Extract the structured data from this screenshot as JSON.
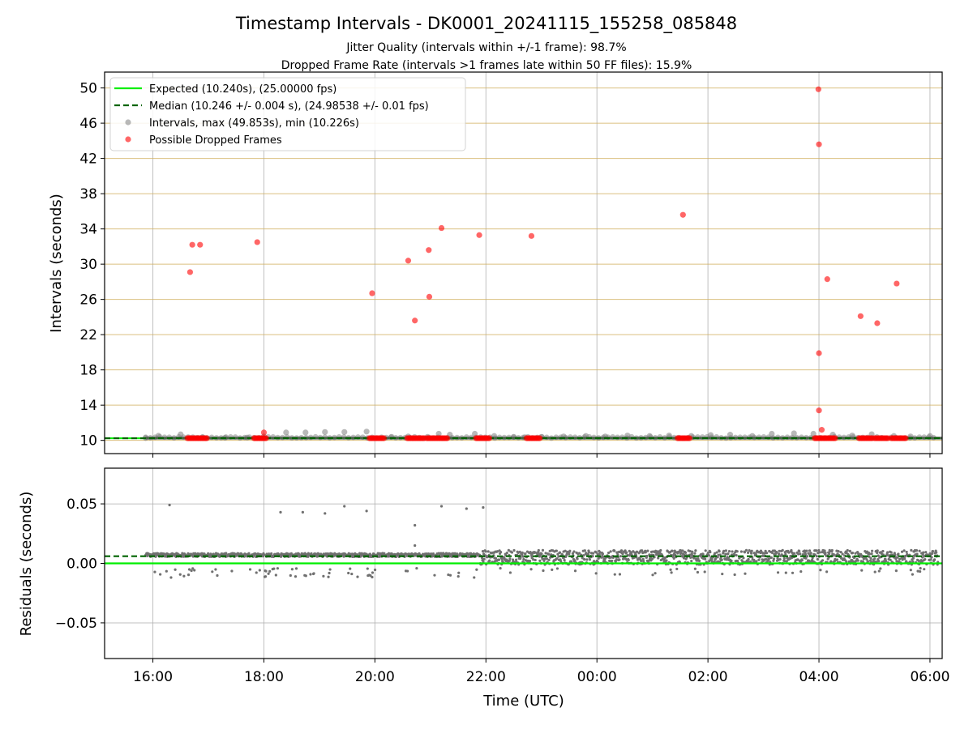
{
  "chart_data": [
    {
      "type": "scatter",
      "title": "Timestamp Intervals - DK0001_20241115_155258_085848",
      "subtitle_lines": [
        "Jitter Quality (intervals within +/-1 frame): 98.7%",
        "Dropped Frame Rate (intervals >1 frames late within 50 FF files): 15.9%"
      ],
      "ylabel": "Intervals (seconds)",
      "x_unit": "hours since 00:00 UTC on the start date",
      "xlim": [
        15.13,
        30.22
      ],
      "ylim": [
        8.5,
        51.8
      ],
      "yticks": [
        10,
        14,
        18,
        22,
        26,
        30,
        34,
        38,
        42,
        46,
        50
      ],
      "grid": true,
      "legend_position": "top-left",
      "legend": [
        "Expected (10.240s), (25.00000 fps)",
        "Median (10.246 +/- 0.004 s), (24.98538 +/- 0.01 fps)",
        "Intervals, max (49.853s), min (10.226s)",
        "Possible Dropped Frames"
      ],
      "series": [
        {
          "name": "Expected (10.240s), (25.00000 fps)",
          "kind": "hline",
          "y": 10.24,
          "color": "#00ee00"
        },
        {
          "name": "Median (10.246 +/- 0.004 s), (24.98538 +/- 0.01 fps)",
          "kind": "hline-dashed",
          "y": 10.246,
          "color": "#006400"
        },
        {
          "name": "Intervals, max (49.853s), min (10.226s)",
          "kind": "points",
          "color": "#808080",
          "x": [
            15.87,
            16.1,
            16.5,
            16.9,
            17.3,
            17.7,
            18.0,
            18.4,
            18.75,
            19.1,
            19.45,
            19.85,
            20.3,
            20.6,
            20.95,
            21.15,
            21.35,
            21.8,
            22.15,
            22.5,
            22.7,
            23.0,
            23.4,
            23.8,
            24.15,
            24.55,
            24.95,
            25.3,
            25.7,
            26.05,
            26.4,
            26.8,
            27.15,
            27.55,
            27.9,
            28.25,
            28.6,
            28.95,
            29.35,
            29.65,
            30.0
          ],
          "y": [
            10.27,
            10.52,
            10.68,
            10.35,
            10.3,
            10.32,
            10.45,
            10.9,
            10.9,
            10.95,
            10.95,
            11.0,
            10.4,
            10.45,
            10.4,
            10.75,
            10.65,
            10.75,
            10.5,
            10.4,
            10.35,
            10.4,
            10.45,
            10.5,
            10.45,
            10.55,
            10.5,
            10.55,
            10.5,
            10.6,
            10.65,
            10.5,
            10.75,
            10.8,
            10.75,
            10.65,
            10.55,
            10.7,
            10.5,
            10.45,
            10.5
          ]
        },
        {
          "name": "Possible Dropped Frames",
          "kind": "points",
          "color": "#ff0000",
          "x": [
            16.67,
            16.71,
            16.85,
            17.88,
            18.0,
            19.95,
            20.6,
            20.72,
            20.97,
            20.98,
            21.2,
            21.88,
            22.82,
            25.55,
            27.99,
            28.0,
            28.0,
            28.0,
            28.05,
            28.15,
            28.75,
            29.05,
            29.4
          ],
          "y": [
            29.1,
            32.2,
            32.2,
            32.5,
            10.9,
            26.7,
            30.4,
            23.6,
            31.6,
            26.3,
            34.1,
            33.3,
            33.2,
            35.6,
            49.85,
            43.6,
            19.9,
            13.4,
            11.2,
            28.3,
            24.1,
            23.3,
            27.8
          ],
          "clusters": [
            [
              16.62,
              16.98
            ],
            [
              17.82,
              18.05
            ],
            [
              19.9,
              20.18
            ],
            [
              20.58,
              20.9
            ],
            [
              20.93,
              21.32
            ],
            [
              21.82,
              22.08
            ],
            [
              22.73,
              22.98
            ],
            [
              25.45,
              25.68
            ],
            [
              27.92,
              28.3
            ],
            [
              28.72,
              28.98
            ],
            [
              29.0,
              29.25
            ],
            [
              29.3,
              29.58
            ]
          ],
          "cluster_y": 10.25
        }
      ]
    },
    {
      "type": "scatter",
      "xlabel": "Time (UTC)",
      "ylabel": "Residuals (seconds)",
      "x_unit": "hours since 00:00 UTC on the start date",
      "xlim": [
        15.13,
        30.22
      ],
      "ylim": [
        -0.08,
        0.08
      ],
      "yticks": [
        0.05,
        0.0,
        -0.05
      ],
      "ytick_labels": [
        "0.05",
        "0.00",
        "−0.05"
      ],
      "xticks": [
        16,
        18,
        20,
        22,
        24,
        26,
        28,
        30
      ],
      "xtick_labels": [
        "16:00",
        "18:00",
        "20:00",
        "22:00",
        "00:00",
        "02:00",
        "04:00",
        "06:00"
      ],
      "grid": true,
      "series": [
        {
          "name": "Expected",
          "kind": "hline",
          "y": 0.0,
          "color": "#00ee00"
        },
        {
          "name": "Median",
          "kind": "hline-dashed",
          "y": 0.006,
          "color": "#006400"
        },
        {
          "name": "Residuals",
          "kind": "points",
          "color": "#707070",
          "outliers_x": [
            16.3,
            18.3,
            18.7,
            19.1,
            19.45,
            19.85,
            20.72,
            21.2,
            21.65,
            21.95,
            20.72
          ],
          "outliers_y": [
            0.049,
            0.043,
            0.043,
            0.042,
            0.048,
            0.044,
            0.032,
            0.048,
            0.046,
            0.047,
            0.015
          ],
          "band": {
            "x_start": 15.87,
            "x_end": 30.15,
            "early_end": 21.9,
            "early_center": 0.007,
            "early_spread": 0.0015,
            "late_center": 0.005,
            "late_spread": 0.006,
            "low_tail_min": -0.012
          }
        }
      ]
    }
  ]
}
